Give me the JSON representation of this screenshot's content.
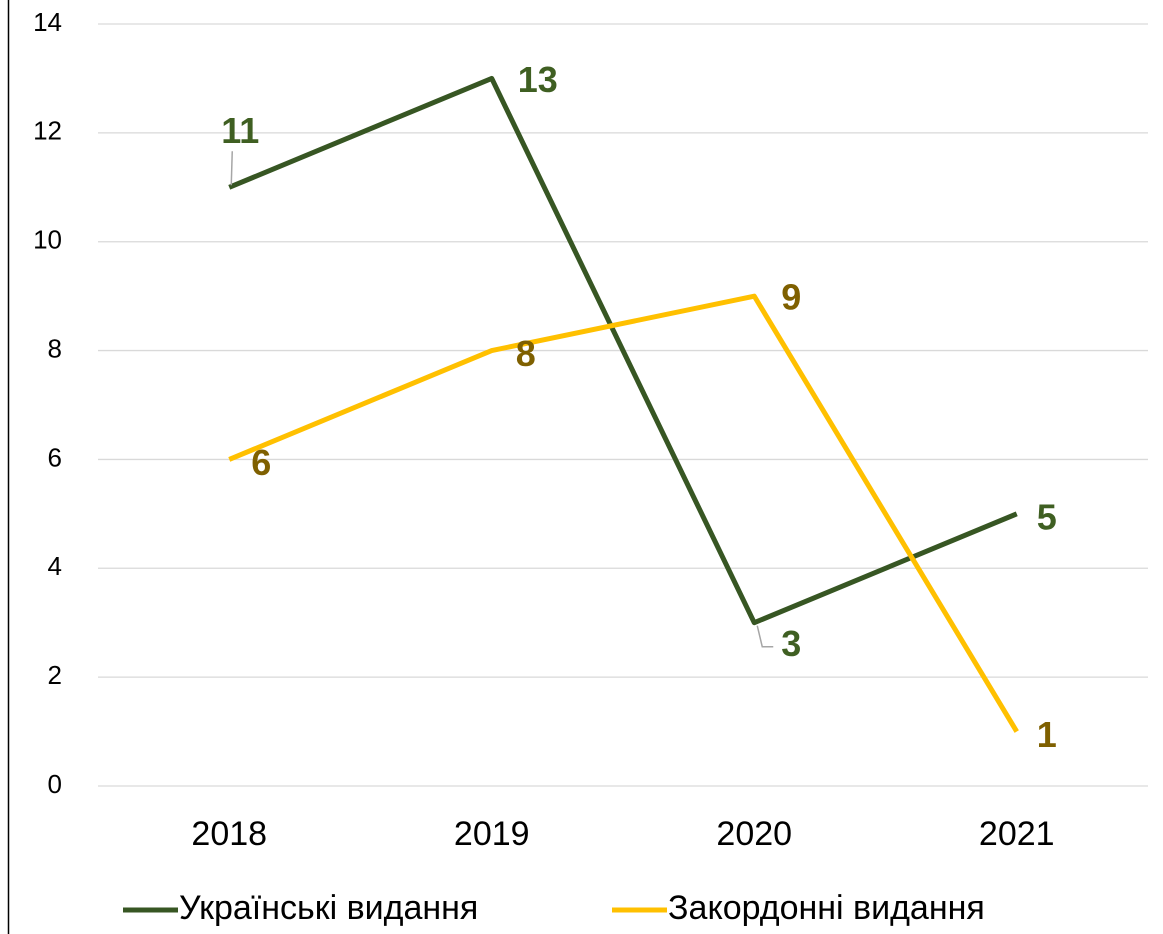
{
  "chart_data": {
    "type": "line",
    "categories": [
      "2018",
      "2019",
      "2020",
      "2021"
    ],
    "series": [
      {
        "name": "Українські видання",
        "color": "#375623",
        "label_color": "#3f5f22",
        "values": [
          11,
          13,
          3,
          5
        ]
      },
      {
        "name": "Закордонні видання",
        "color": "#ffc000",
        "label_color": "#7f6000",
        "values": [
          6,
          8,
          9,
          1
        ]
      }
    ],
    "ylim": [
      0,
      14
    ],
    "yticks": [
      0,
      2,
      4,
      6,
      8,
      10,
      12,
      14
    ],
    "grid": true,
    "legend": "bottom"
  }
}
